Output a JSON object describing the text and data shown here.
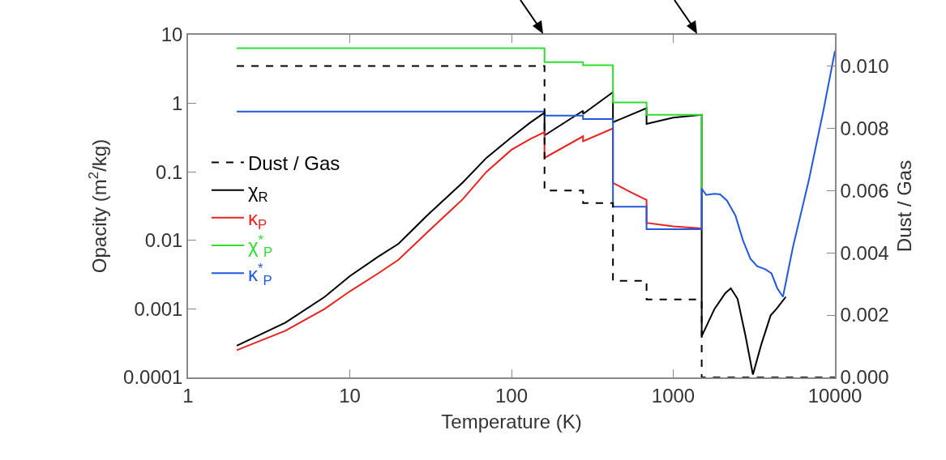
{
  "chart_data": {
    "type": "line",
    "xlabel": "Temperature (K)",
    "ylabel": "Opacity (m$^{2}$/kg)",
    "y2label": "Dust / Gas",
    "log": "xy",
    "grid": false,
    "legend": "left",
    "xlim": [
      1,
      10000
    ],
    "xticks": [
      1,
      10,
      100,
      1000,
      10000
    ],
    "ylim": [
      0.0001,
      10
    ],
    "yticks": [
      0.0001,
      0.001,
      0.01,
      0.1,
      1,
      10
    ],
    "y2lim": [
      0,
      0.011
    ],
    "y2ticks": [
      {
        "value": 0,
        "label": "0.000"
      },
      {
        "value": 0.002,
        "label": "0.002"
      },
      {
        "value": 0.004,
        "label": "0.004"
      },
      {
        "value": 0.006,
        "label": "0.006"
      },
      {
        "value": 0.008,
        "label": "0.008"
      },
      {
        "value": 0.01,
        "label": "0.010"
      }
    ],
    "series": [
      {
        "name": "Dust / Gas",
        "type": "step",
        "axis": "y2",
        "color": "#000000",
        "line_style": "dashed",
        "x": [
          2,
          160,
          277,
          424,
          684,
          1500,
          10000
        ],
        "values": [
          0.01,
          0.006,
          0.0056,
          0.0031,
          0.0025,
          0,
          0
        ]
      },
      {
        "name": "χ$_{R}$",
        "color": "#000000",
        "line_style": "solid",
        "x": [
          2,
          4,
          7,
          10,
          15,
          20,
          30,
          50,
          70,
          100,
          130,
          160,
          160,
          277,
          277,
          424,
          424,
          684,
          684,
          1000,
          1500,
          1500,
          1800,
          2100,
          2270,
          2500,
          2800,
          3110,
          3500,
          4000,
          4350,
          4970
        ],
        "values": [
          0.00029,
          0.00063,
          0.0015,
          0.003,
          0.0058,
          0.0089,
          0.023,
          0.07,
          0.16,
          0.32,
          0.52,
          0.73,
          0.34,
          0.78,
          0.7,
          1.46,
          0.53,
          0.85,
          0.5,
          0.62,
          0.68,
          0.0004,
          0.001,
          0.0017,
          0.002,
          0.0014,
          0.0004,
          0.00011,
          0.0003,
          0.0008,
          0.001,
          0.0015
        ]
      },
      {
        "name": "κ$_{P}$",
        "color": "#e8231f",
        "line_style": "solid",
        "x": [
          2,
          4,
          7,
          10,
          15,
          20,
          30,
          50,
          70,
          100,
          130,
          160,
          160,
          277,
          277,
          424,
          424,
          550,
          684,
          684,
          1000,
          1500
        ],
        "values": [
          0.00025,
          0.00048,
          0.001,
          0.0018,
          0.0033,
          0.0052,
          0.013,
          0.04,
          0.1,
          0.21,
          0.3,
          0.38,
          0.16,
          0.33,
          0.28,
          0.43,
          0.069,
          0.05,
          0.039,
          0.018,
          0.016,
          0.015
        ]
      },
      {
        "name": "χ$^{*}$$_{P}$",
        "type": "step",
        "color": "#2ee02e",
        "line_style": "solid",
        "x": [
          2,
          160,
          277,
          424,
          684,
          1500
        ],
        "values": [
          6.4,
          4.0,
          3.6,
          1.03,
          0.68,
          0.057
        ]
      },
      {
        "name": "κ$^{*}$$_{P}$",
        "color": "#2257e0",
        "line_style": "solid",
        "x": [
          2,
          160,
          160,
          277,
          277,
          424,
          424,
          684,
          684,
          1500,
          1500,
          1600,
          1800,
          1950,
          2150,
          2425,
          2700,
          3000,
          3300,
          3700,
          4050,
          4400,
          4770,
          5500,
          6900,
          8500,
          10000
        ],
        "values": [
          0.76,
          0.76,
          0.66,
          0.66,
          0.59,
          0.59,
          0.031,
          0.031,
          0.0146,
          0.0146,
          0.057,
          0.046,
          0.048,
          0.047,
          0.038,
          0.023,
          0.01,
          0.0054,
          0.0042,
          0.0038,
          0.0033,
          0.002,
          0.0015,
          0.008,
          0.076,
          0.8,
          5.8
        ]
      }
    ]
  }
}
